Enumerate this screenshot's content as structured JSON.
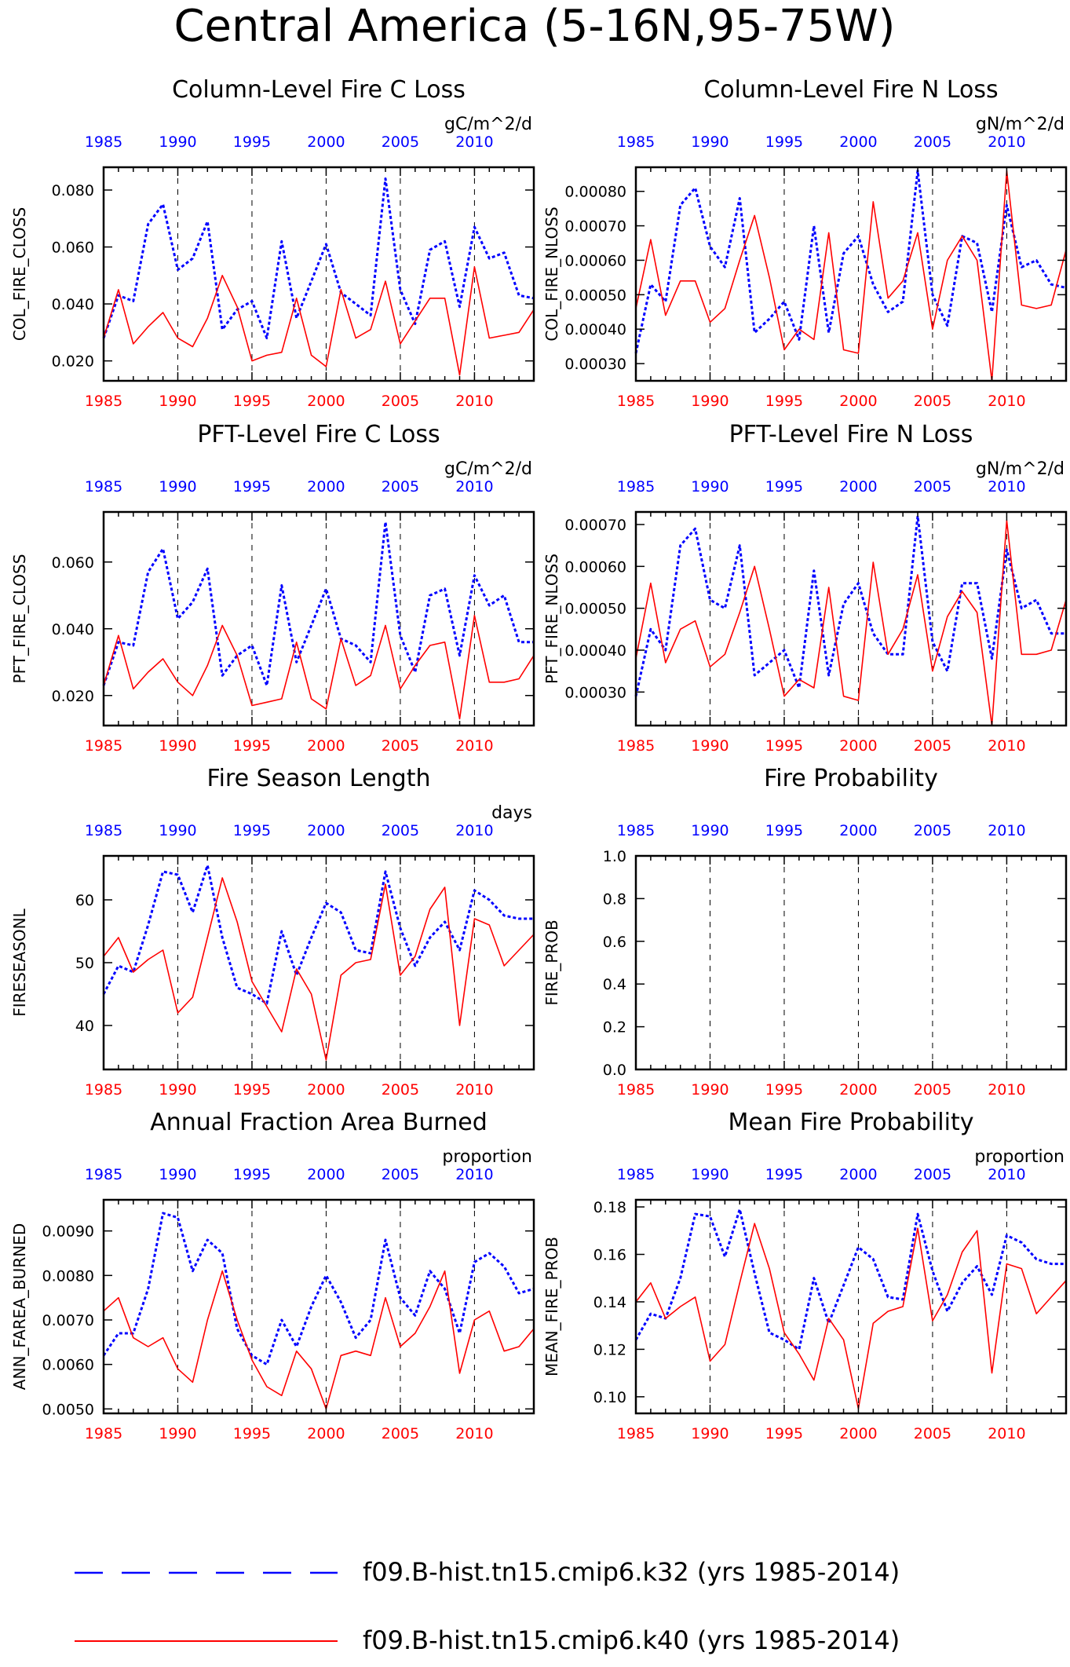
{
  "page": {
    "title": "Central America (5-16N,95-75W)"
  },
  "colors": {
    "series_a": "#0000ff",
    "series_b": "#ff0000",
    "axis": "#000000"
  },
  "legend": {
    "items": [
      {
        "label": "f09.B-hist.tn15.cmip6.k32 (yrs 1985-2014)",
        "style": "dashed",
        "color": "#0000ff"
      },
      {
        "label": "f09.B-hist.tn15.cmip6.k40 (yrs 1985-2014)",
        "style": "solid",
        "color": "#ff0000"
      }
    ]
  },
  "chart_data": [
    {
      "type": "line",
      "title": "Column-Level Fire C Loss",
      "units": "gC/m^2/d",
      "ylabel": "COL_FIRE_CLOSS",
      "xlim": [
        1985,
        2014
      ],
      "ylim": [
        0.013,
        0.088
      ],
      "yticks": [
        0.02,
        0.04,
        0.06,
        0.08
      ],
      "ytick_labels": [
        "0.020",
        "0.040",
        "0.060",
        "0.080"
      ],
      "xticks": [
        1985,
        1990,
        1995,
        2000,
        2005,
        2010
      ],
      "x": [
        1985,
        1986,
        1987,
        1988,
        1989,
        1990,
        1991,
        1992,
        1993,
        1994,
        1995,
        1996,
        1997,
        1998,
        1999,
        2000,
        2001,
        2002,
        2003,
        2004,
        2005,
        2006,
        2007,
        2008,
        2009,
        2010,
        2011,
        2012,
        2013,
        2014
      ],
      "series": [
        {
          "values": [
            0.028,
            0.043,
            0.041,
            0.068,
            0.075,
            0.052,
            0.056,
            0.069,
            0.031,
            0.038,
            0.041,
            0.028,
            0.062,
            0.035,
            0.048,
            0.061,
            0.044,
            0.04,
            0.036,
            0.084,
            0.045,
            0.033,
            0.059,
            0.062,
            0.039,
            0.067,
            0.056,
            0.058,
            0.043,
            0.042
          ]
        },
        {
          "values": [
            0.028,
            0.045,
            0.026,
            0.032,
            0.037,
            0.028,
            0.025,
            0.035,
            0.05,
            0.039,
            0.02,
            0.022,
            0.023,
            0.042,
            0.022,
            0.018,
            0.045,
            0.028,
            0.031,
            0.048,
            0.026,
            0.034,
            0.042,
            0.042,
            0.015,
            0.053,
            0.028,
            0.029,
            0.03,
            0.038
          ]
        }
      ]
    },
    {
      "type": "line",
      "title": "Column-Level Fire N Loss",
      "units": "gN/m^2/d",
      "ylabel": "COL_FIRE_NLOSS",
      "xlim": [
        1985,
        2014
      ],
      "ylim": [
        0.00025,
        0.00087
      ],
      "yticks": [
        0.0003,
        0.0004,
        0.0005,
        0.0006,
        0.0007,
        0.0008
      ],
      "ytick_labels": [
        "0.00030",
        "0.00040",
        "0.00050",
        "0.00060",
        "0.00070",
        "0.00080"
      ],
      "xticks": [
        1985,
        1990,
        1995,
        2000,
        2005,
        2010
      ],
      "x": [
        1985,
        1986,
        1987,
        1988,
        1989,
        1990,
        1991,
        1992,
        1993,
        1994,
        1995,
        1996,
        1997,
        1998,
        1999,
        2000,
        2001,
        2002,
        2003,
        2004,
        2005,
        2006,
        2007,
        2008,
        2009,
        2010,
        2011,
        2012,
        2013,
        2014
      ],
      "series": [
        {
          "values": [
            0.00033,
            0.00053,
            0.00048,
            0.00076,
            0.00081,
            0.00064,
            0.00058,
            0.00078,
            0.00039,
            0.00043,
            0.00048,
            0.00037,
            0.0007,
            0.00039,
            0.00062,
            0.00067,
            0.00053,
            0.00045,
            0.00048,
            0.00086,
            0.0005,
            0.00041,
            0.00067,
            0.00065,
            0.00045,
            0.00076,
            0.00058,
            0.0006,
            0.00053,
            0.00052
          ]
        },
        {
          "values": [
            0.00046,
            0.00066,
            0.00044,
            0.00054,
            0.00054,
            0.00042,
            0.00046,
            0.0006,
            0.00073,
            0.00055,
            0.00034,
            0.0004,
            0.00037,
            0.00068,
            0.00034,
            0.00033,
            0.00077,
            0.00049,
            0.00054,
            0.00068,
            0.0004,
            0.0006,
            0.00067,
            0.0006,
            0.00025,
            0.00086,
            0.00047,
            0.00046,
            0.00047,
            0.00063
          ]
        }
      ]
    },
    {
      "type": "line",
      "title": "PFT-Level Fire C Loss",
      "units": "gC/m^2/d",
      "ylabel": "PFT_FIRE_CLOSS",
      "xlim": [
        1985,
        2014
      ],
      "ylim": [
        0.011,
        0.075
      ],
      "yticks": [
        0.02,
        0.04,
        0.06
      ],
      "ytick_labels": [
        "0.020",
        "0.040",
        "0.060"
      ],
      "xticks": [
        1985,
        1990,
        1995,
        2000,
        2005,
        2010
      ],
      "x": [
        1985,
        1986,
        1987,
        1988,
        1989,
        1990,
        1991,
        1992,
        1993,
        1994,
        1995,
        1996,
        1997,
        1998,
        1999,
        2000,
        2001,
        2002,
        2003,
        2004,
        2005,
        2006,
        2007,
        2008,
        2009,
        2010,
        2011,
        2012,
        2013,
        2014
      ],
      "series": [
        {
          "values": [
            0.023,
            0.036,
            0.035,
            0.057,
            0.064,
            0.043,
            0.048,
            0.058,
            0.026,
            0.032,
            0.035,
            0.023,
            0.053,
            0.03,
            0.041,
            0.052,
            0.037,
            0.035,
            0.03,
            0.072,
            0.038,
            0.027,
            0.05,
            0.052,
            0.032,
            0.056,
            0.047,
            0.05,
            0.036,
            0.036
          ]
        },
        {
          "values": [
            0.023,
            0.038,
            0.022,
            0.027,
            0.031,
            0.024,
            0.02,
            0.029,
            0.041,
            0.032,
            0.017,
            0.018,
            0.019,
            0.036,
            0.019,
            0.016,
            0.037,
            0.023,
            0.026,
            0.041,
            0.022,
            0.029,
            0.035,
            0.036,
            0.013,
            0.044,
            0.024,
            0.024,
            0.025,
            0.032
          ]
        }
      ]
    },
    {
      "type": "line",
      "title": "PFT-Level Fire N Loss",
      "units": "gN/m^2/d",
      "ylabel": "PFT_FIRE_NLOSS",
      "xlim": [
        1985,
        2014
      ],
      "ylim": [
        0.00022,
        0.00073
      ],
      "yticks": [
        0.0003,
        0.0004,
        0.0005,
        0.0006,
        0.0007
      ],
      "ytick_labels": [
        "0.00030",
        "0.00040",
        "0.00050",
        "0.00060",
        "0.00070"
      ],
      "xticks": [
        1985,
        1990,
        1995,
        2000,
        2005,
        2010
      ],
      "x": [
        1985,
        1986,
        1987,
        1988,
        1989,
        1990,
        1991,
        1992,
        1993,
        1994,
        1995,
        1996,
        1997,
        1998,
        1999,
        2000,
        2001,
        2002,
        2003,
        2004,
        2005,
        2006,
        2007,
        2008,
        2009,
        2010,
        2011,
        2012,
        2013,
        2014
      ],
      "series": [
        {
          "values": [
            0.00029,
            0.00045,
            0.0004,
            0.00065,
            0.00069,
            0.00052,
            0.0005,
            0.00065,
            0.00034,
            0.00037,
            0.0004,
            0.00031,
            0.00059,
            0.00034,
            0.00051,
            0.00056,
            0.00044,
            0.00039,
            0.00039,
            0.00072,
            0.00042,
            0.00035,
            0.00056,
            0.00056,
            0.00038,
            0.00064,
            0.0005,
            0.00052,
            0.00044,
            0.00044
          ]
        },
        {
          "values": [
            0.00038,
            0.00056,
            0.00037,
            0.00045,
            0.00047,
            0.00036,
            0.00039,
            0.00049,
            0.0006,
            0.00045,
            0.00029,
            0.00033,
            0.00031,
            0.00055,
            0.00029,
            0.00028,
            0.00061,
            0.00039,
            0.00045,
            0.00058,
            0.00035,
            0.00048,
            0.00054,
            0.00049,
            0.00022,
            0.00071,
            0.00039,
            0.00039,
            0.0004,
            0.00052
          ]
        }
      ]
    },
    {
      "type": "line",
      "title": "Fire Season Length",
      "units": "days",
      "ylabel": "FIRESEASONL",
      "xlim": [
        1985,
        2014
      ],
      "ylim": [
        33,
        67
      ],
      "yticks": [
        40,
        50,
        60
      ],
      "ytick_labels": [
        "40",
        "50",
        "60"
      ],
      "xticks": [
        1985,
        1990,
        1995,
        2000,
        2005,
        2010
      ],
      "x": [
        1985,
        1986,
        1987,
        1988,
        1989,
        1990,
        1991,
        1992,
        1993,
        1994,
        1995,
        1996,
        1997,
        1998,
        1999,
        2000,
        2001,
        2002,
        2003,
        2004,
        2005,
        2006,
        2007,
        2008,
        2009,
        2010,
        2011,
        2012,
        2013,
        2014
      ],
      "series": [
        {
          "values": [
            45,
            49.5,
            48.5,
            56,
            64.5,
            64,
            58,
            65.5,
            54,
            46,
            45,
            43.5,
            55,
            48,
            54,
            59.5,
            58,
            52,
            51.5,
            64.5,
            55.5,
            49.5,
            54,
            56.5,
            52,
            61.5,
            60,
            57.5,
            57,
            57
          ]
        },
        {
          "values": [
            51,
            54,
            48.5,
            50.5,
            52,
            42,
            44.5,
            54,
            63.5,
            56.5,
            47,
            43,
            39,
            49,
            45,
            34.5,
            48,
            50,
            50.5,
            62.5,
            48,
            51,
            58.5,
            62,
            40,
            57,
            56,
            49.5,
            52,
            54.5
          ]
        }
      ]
    },
    {
      "type": "line",
      "title": "Fire Probability",
      "units": "",
      "ylabel": "FIRE_PROB",
      "xlim": [
        1985,
        2014
      ],
      "ylim": [
        0,
        1
      ],
      "yticks": [
        0.0,
        0.2,
        0.4,
        0.6,
        0.8,
        1.0
      ],
      "ytick_labels": [
        "0.0",
        "0.2",
        "0.4",
        "0.6",
        "0.8",
        "1.0"
      ],
      "xticks": [
        1985,
        1990,
        1995,
        2000,
        2005,
        2010
      ],
      "x": [],
      "series": []
    },
    {
      "type": "line",
      "title": "Annual Fraction Area Burned",
      "units": "proportion",
      "ylabel": "ANN_FAREA_BURNED",
      "xlim": [
        1985,
        2014
      ],
      "ylim": [
        0.0049,
        0.0097
      ],
      "yticks": [
        0.005,
        0.006,
        0.007,
        0.008,
        0.009
      ],
      "ytick_labels": [
        "0.0050",
        "0.0060",
        "0.0070",
        "0.0080",
        "0.0090"
      ],
      "xticks": [
        1985,
        1990,
        1995,
        2000,
        2005,
        2010
      ],
      "x": [
        1985,
        1986,
        1987,
        1988,
        1989,
        1990,
        1991,
        1992,
        1993,
        1994,
        1995,
        1996,
        1997,
        1998,
        1999,
        2000,
        2001,
        2002,
        2003,
        2004,
        2005,
        2006,
        2007,
        2008,
        2009,
        2010,
        2011,
        2012,
        2013,
        2014
      ],
      "series": [
        {
          "values": [
            0.0062,
            0.0067,
            0.0067,
            0.0077,
            0.0094,
            0.0093,
            0.0081,
            0.0088,
            0.0085,
            0.0068,
            0.0062,
            0.006,
            0.007,
            0.0064,
            0.0073,
            0.008,
            0.0074,
            0.0066,
            0.007,
            0.0088,
            0.0075,
            0.0071,
            0.0081,
            0.0077,
            0.0067,
            0.0083,
            0.0085,
            0.0082,
            0.0076,
            0.0077
          ]
        },
        {
          "values": [
            0.0072,
            0.0075,
            0.0066,
            0.0064,
            0.0066,
            0.0059,
            0.0056,
            0.007,
            0.0081,
            0.007,
            0.0061,
            0.0055,
            0.0053,
            0.0063,
            0.0059,
            0.005,
            0.0062,
            0.0063,
            0.0062,
            0.0075,
            0.0064,
            0.0067,
            0.0073,
            0.0081,
            0.0058,
            0.007,
            0.0072,
            0.0063,
            0.0064,
            0.0068
          ]
        }
      ]
    },
    {
      "type": "line",
      "title": "Mean Fire Probability",
      "units": "proportion",
      "ylabel": "MEAN_FIRE_PROB",
      "xlim": [
        1985,
        2014
      ],
      "ylim": [
        0.093,
        0.183
      ],
      "yticks": [
        0.1,
        0.12,
        0.14,
        0.16,
        0.18
      ],
      "ytick_labels": [
        "0.10",
        "0.12",
        "0.14",
        "0.16",
        "0.18"
      ],
      "xticks": [
        1985,
        1990,
        1995,
        2000,
        2005,
        2010
      ],
      "x": [
        1985,
        1986,
        1987,
        1988,
        1989,
        1990,
        1991,
        1992,
        1993,
        1994,
        1995,
        1996,
        1997,
        1998,
        1999,
        2000,
        2001,
        2002,
        2003,
        2004,
        2005,
        2006,
        2007,
        2008,
        2009,
        2010,
        2011,
        2012,
        2013,
        2014
      ],
      "series": [
        {
          "values": [
            0.124,
            0.135,
            0.133,
            0.15,
            0.177,
            0.176,
            0.159,
            0.179,
            0.152,
            0.127,
            0.124,
            0.12,
            0.15,
            0.131,
            0.147,
            0.163,
            0.158,
            0.142,
            0.141,
            0.177,
            0.153,
            0.136,
            0.148,
            0.155,
            0.143,
            0.168,
            0.165,
            0.158,
            0.156,
            0.156
          ]
        },
        {
          "values": [
            0.14,
            0.148,
            0.133,
            0.138,
            0.142,
            0.115,
            0.122,
            0.148,
            0.173,
            0.154,
            0.127,
            0.118,
            0.107,
            0.133,
            0.124,
            0.095,
            0.131,
            0.136,
            0.138,
            0.171,
            0.132,
            0.143,
            0.161,
            0.17,
            0.11,
            0.156,
            0.154,
            0.135,
            0.142,
            0.149
          ]
        }
      ]
    }
  ]
}
